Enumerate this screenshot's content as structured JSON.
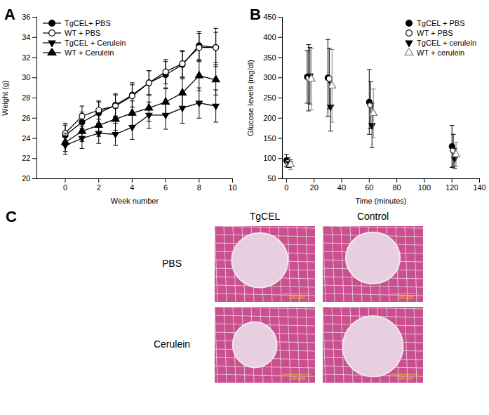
{
  "chart_data": [
    {
      "panel": "A",
      "type": "line",
      "x_label": "Week number",
      "y_label": "Weight (g)",
      "x": [
        0,
        1,
        2,
        3,
        4,
        5,
        6,
        7,
        8,
        9
      ],
      "xlim": [
        -1.7,
        10
      ],
      "xticks": [
        0,
        2,
        4,
        6,
        8,
        10
      ],
      "ylim": [
        20,
        36
      ],
      "yticks": [
        20,
        22,
        24,
        26,
        28,
        30,
        32,
        34,
        36
      ],
      "legend": "top-left",
      "series": [
        {
          "name": "TgCEL+ PBS",
          "color": "#000000",
          "marker": "circle",
          "values": [
            24.3,
            25.6,
            26.5,
            27.3,
            28.3,
            29.5,
            30.3,
            31.3,
            33.2,
            33.0
          ],
          "error": [
            1.0,
            1.0,
            1.1,
            1.1,
            1.2,
            1.2,
            1.3,
            1.3,
            1.4,
            1.5
          ]
        },
        {
          "name": "WT + PBS",
          "color": "#000000",
          "marker": "circle-open",
          "values": [
            24.5,
            26.2,
            26.8,
            27.2,
            28.2,
            29.5,
            30.6,
            31.4,
            33.0,
            33.0
          ],
          "error": [
            1.0,
            1.0,
            0.9,
            1.1,
            1.1,
            1.2,
            1.2,
            1.3,
            1.4,
            1.9
          ]
        },
        {
          "name": "TgCEL + Cerulein",
          "color": "#000000",
          "marker": "triangle-down",
          "values": [
            23.3,
            24.0,
            24.5,
            24.4,
            25.1,
            26.3,
            26.3,
            27.0,
            27.5,
            27.2
          ],
          "error": [
            0.9,
            1.0,
            1.0,
            1.1,
            1.2,
            1.3,
            1.4,
            1.5,
            1.5,
            1.6
          ]
        },
        {
          "name": "WT + Cerulein",
          "color": "#000000",
          "marker": "triangle",
          "values": [
            23.6,
            24.7,
            25.3,
            25.9,
            26.5,
            27.0,
            27.6,
            28.5,
            30.2,
            29.8
          ],
          "error": [
            0.9,
            1.0,
            1.1,
            1.1,
            1.2,
            1.3,
            1.3,
            1.4,
            1.5,
            1.5
          ]
        }
      ]
    },
    {
      "panel": "B",
      "type": "scatter",
      "x_label": "Time (minutes)",
      "y_label": "Glucose levels (mg/dl)",
      "xlim": [
        -3,
        140
      ],
      "xticks": [
        0,
        20,
        40,
        60,
        80,
        100,
        120,
        140
      ],
      "ylim": [
        50,
        450
      ],
      "yticks": [
        50,
        100,
        150,
        200,
        250,
        300,
        350,
        400,
        450
      ],
      "legend": "top-right",
      "series": [
        {
          "name": "TgCEL + PBS",
          "color": "#000000",
          "marker": "circle",
          "x": [
            0,
            15,
            30,
            60,
            120
          ],
          "values": [
            95,
            302,
            300,
            240,
            130
          ],
          "error": [
            15,
            65,
            95,
            80,
            52
          ]
        },
        {
          "name": "WT + PBS",
          "color": "#000000",
          "marker": "circle-open",
          "x": [
            1,
            16,
            31,
            61,
            121
          ],
          "values": [
            90,
            300,
            298,
            232,
            120
          ],
          "error": [
            12,
            82,
            75,
            58,
            40
          ]
        },
        {
          "name": "TgCEL + cerulein",
          "color": "#000000",
          "marker": "triangle-down",
          "x": [
            2,
            17,
            32,
            62,
            122
          ],
          "values": [
            88,
            305,
            228,
            182,
            100
          ],
          "error": [
            10,
            70,
            60,
            55,
            25
          ]
        },
        {
          "name": "WT + cerulein",
          "color": "#808080",
          "marker": "triangle-open",
          "x": [
            3,
            18,
            33,
            63,
            123
          ],
          "values": [
            85,
            297,
            280,
            212,
            110
          ],
          "error": [
            12,
            75,
            90,
            60,
            30
          ]
        }
      ]
    }
  ],
  "image_panel": {
    "panel": "C",
    "columns": [
      "TgCEL",
      "Control"
    ],
    "rows": [
      "PBS",
      "Cerulein"
    ],
    "scale_bar": "100 µm"
  }
}
